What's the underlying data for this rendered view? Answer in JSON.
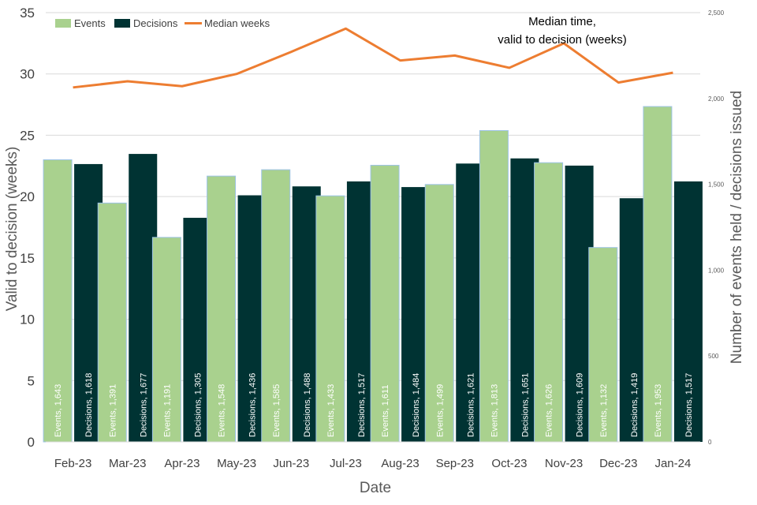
{
  "chart_data": {
    "type": "bar",
    "categories": [
      "Feb-23",
      "Mar-23",
      "Apr-23",
      "May-23",
      "Jun-23",
      "Jul-23",
      "Aug-23",
      "Sep-23",
      "Oct-23",
      "Nov-23",
      "Dec-23",
      "Jan-24"
    ],
    "series": [
      {
        "name": "Events",
        "type": "bar",
        "axis": "right",
        "color": "#a9d18e",
        "values": [
          1643,
          1391,
          1191,
          1548,
          1585,
          1433,
          1611,
          1499,
          1813,
          1626,
          1132,
          1953
        ],
        "labels": [
          "Events, 1,643",
          "Events, 1,391",
          "Events, 1,191",
          "Events, 1,548",
          "Events, 1,585",
          "Events, 1,433",
          "Events, 1,611",
          "Events, 1,499",
          "Events, 1,813",
          "Events, 1,626",
          "Events, 1,132",
          "Events, 1,953"
        ]
      },
      {
        "name": "Decisions",
        "type": "bar",
        "axis": "right",
        "color": "#003333",
        "values": [
          1618,
          1677,
          1305,
          1436,
          1488,
          1517,
          1484,
          1621,
          1651,
          1609,
          1419,
          1517
        ],
        "labels": [
          "Decisions, 1,618",
          "Decisions, 1,677",
          "Decisions, 1,305",
          "Decisions, 1,436",
          "Decisions, 1,488",
          "Decisions, 1,517",
          "Decisions, 1,484",
          "Decisions, 1,621",
          "Decisions, 1,651",
          "Decisions, 1,609",
          "Decisions, 1,419",
          "Decisions, 1,517"
        ]
      },
      {
        "name": "Median weeks",
        "type": "line",
        "axis": "left",
        "color": "#ed7d31",
        "values": [
          28.9,
          29.4,
          29.0,
          30.0,
          31.8,
          33.7,
          31.1,
          31.5,
          30.5,
          32.5,
          29.3,
          30.1
        ]
      }
    ],
    "legend": [
      "Events",
      "Decisions",
      "Median weeks"
    ],
    "legend_position": "top-left",
    "annotation": [
      "Median time,",
      "valid to decision (weeks)"
    ],
    "xlabel": "Date",
    "ylabel": "Valid to decision (weeks)",
    "y2label": "Number of events held / decisions issued",
    "ylim": [
      0,
      35
    ],
    "y2lim": [
      0,
      2500
    ],
    "yticks": [
      "0",
      "5",
      "10",
      "15",
      "20",
      "25",
      "30",
      "35"
    ],
    "y2ticks": [
      "0",
      "500",
      "1,000",
      "1,500",
      "2,000",
      "2,500"
    ],
    "grid": true
  }
}
